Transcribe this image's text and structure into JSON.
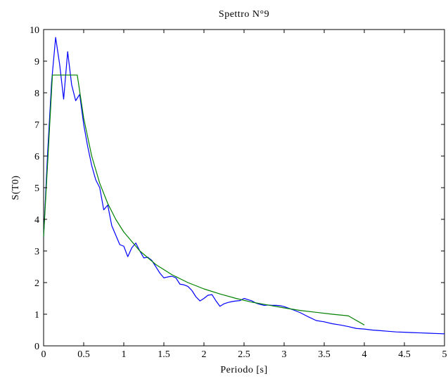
{
  "chart_data": {
    "type": "line",
    "title": "Spettro N°9",
    "xlabel": "Periodo [s]",
    "ylabel": "S(T0)",
    "xlim": [
      0,
      5
    ],
    "ylim": [
      0,
      10
    ],
    "x_ticks": [
      0,
      0.5,
      1,
      1.5,
      2,
      2.5,
      3,
      3.5,
      4,
      4.5,
      5
    ],
    "x_tick_labels": [
      "0",
      "0.5",
      "1",
      "1.5",
      "2",
      "2.5",
      "3",
      "3.5",
      "4",
      "4.5",
      "5"
    ],
    "y_ticks": [
      0,
      1,
      2,
      3,
      4,
      5,
      6,
      7,
      8,
      9,
      10
    ],
    "y_tick_labels": [
      "0",
      "1",
      "2",
      "3",
      "4",
      "5",
      "6",
      "7",
      "8",
      "9",
      "10"
    ],
    "grid": false,
    "legend": "none",
    "series": [
      {
        "color": "#0000ff",
        "x": [
          0,
          0.05,
          0.1,
          0.15,
          0.2,
          0.25,
          0.3,
          0.35,
          0.4,
          0.45,
          0.5,
          0.55,
          0.6,
          0.65,
          0.7,
          0.75,
          0.8,
          0.85,
          0.9,
          0.95,
          1.0,
          1.05,
          1.1,
          1.15,
          1.2,
          1.25,
          1.3,
          1.35,
          1.4,
          1.45,
          1.5,
          1.55,
          1.6,
          1.65,
          1.7,
          1.75,
          1.8,
          1.85,
          1.9,
          1.95,
          2.0,
          2.05,
          2.1,
          2.15,
          2.2,
          2.25,
          2.3,
          2.35,
          2.4,
          2.45,
          2.5,
          2.55,
          2.6,
          2.65,
          2.7,
          2.75,
          2.8,
          2.85,
          2.9,
          2.95,
          3.0,
          3.1,
          3.2,
          3.3,
          3.4,
          3.5,
          3.6,
          3.7,
          3.8,
          3.9,
          4.0,
          4.1,
          4.2,
          4.3,
          4.4,
          4.5,
          4.6,
          4.7,
          4.8,
          4.9,
          5.0
        ],
        "y": [
          3.45,
          6.1,
          8.35,
          9.75,
          8.9,
          7.8,
          9.3,
          8.25,
          7.75,
          7.95,
          7.0,
          6.3,
          5.7,
          5.25,
          5.0,
          4.3,
          4.45,
          3.8,
          3.5,
          3.2,
          3.15,
          2.82,
          3.1,
          3.25,
          3.0,
          2.78,
          2.8,
          2.7,
          2.5,
          2.3,
          2.15,
          2.18,
          2.2,
          2.15,
          1.95,
          1.93,
          1.88,
          1.75,
          1.55,
          1.42,
          1.5,
          1.6,
          1.62,
          1.42,
          1.25,
          1.33,
          1.37,
          1.4,
          1.42,
          1.43,
          1.5,
          1.46,
          1.42,
          1.35,
          1.31,
          1.28,
          1.29,
          1.28,
          1.28,
          1.27,
          1.24,
          1.15,
          1.05,
          0.92,
          0.8,
          0.76,
          0.7,
          0.66,
          0.61,
          0.55,
          0.53,
          0.5,
          0.48,
          0.46,
          0.44,
          0.43,
          0.42,
          0.41,
          0.4,
          0.39,
          0.38
        ]
      },
      {
        "color": "#008000",
        "x": [
          0,
          0.11,
          0.42,
          0.5,
          0.6,
          0.7,
          0.8,
          0.9,
          1.0,
          1.2,
          1.4,
          1.6,
          1.8,
          2.0,
          2.2,
          2.4,
          2.6,
          2.8,
          3.0,
          3.2,
          3.4,
          3.6,
          3.8,
          4.0
        ],
        "y": [
          3.45,
          8.56,
          8.56,
          7.2,
          6.0,
          5.14,
          4.5,
          4.0,
          3.6,
          3.0,
          2.57,
          2.25,
          2.0,
          1.8,
          1.64,
          1.5,
          1.38,
          1.29,
          1.2,
          1.12,
          1.06,
          1.0,
          0.95,
          0.66
        ]
      }
    ]
  }
}
